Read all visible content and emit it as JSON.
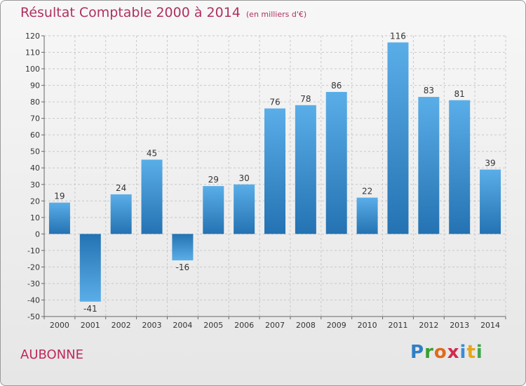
{
  "chart_data": {
    "type": "bar",
    "title": "Résultat Comptable 2000 à 2014",
    "subtitle": "(en milliers d'€)",
    "categories": [
      "2000",
      "2001",
      "2002",
      "2003",
      "2004",
      "2005",
      "2006",
      "2007",
      "2008",
      "2009",
      "2010",
      "2011",
      "2012",
      "2013",
      "2014"
    ],
    "values": [
      19,
      -41,
      24,
      45,
      -16,
      29,
      30,
      76,
      78,
      86,
      22,
      116,
      83,
      81,
      39
    ],
    "value_labels": [
      "19",
      "-41",
      "24",
      "45",
      "-16",
      "29",
      "30",
      "76",
      "78",
      "86",
      "22",
      "116",
      "83",
      "81",
      "39"
    ],
    "ylim": [
      -50,
      120
    ],
    "yticks": [
      120,
      110,
      100,
      90,
      80,
      70,
      60,
      50,
      40,
      30,
      20,
      10,
      0,
      -10,
      -20,
      -30,
      -40,
      -50
    ],
    "ytick_labels": [
      "120",
      "110",
      "100",
      "90",
      "80",
      "70",
      "60",
      "50",
      "40",
      "30",
      "20",
      "10",
      "0",
      "-10",
      "-20",
      "-30",
      "-40",
      "-50"
    ],
    "grid": true,
    "xlabel": "",
    "ylabel": "",
    "colors": {
      "bar_light": "#5aaee8",
      "bar_dark": "#2472b2",
      "title": "#b03060"
    }
  },
  "commune": "AUBONNE",
  "brand": {
    "letters": [
      "P",
      "r",
      "o",
      "x",
      "i",
      "t",
      "i"
    ]
  }
}
